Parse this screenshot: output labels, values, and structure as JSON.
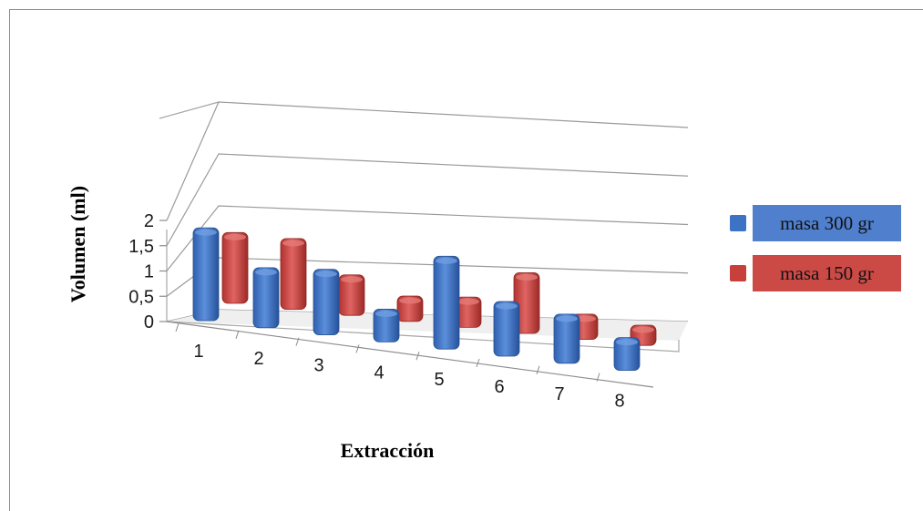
{
  "chart_data": {
    "type": "bar",
    "title": "",
    "xlabel": "Extracción",
    "ylabel": "Volumen  (ml)",
    "categories": [
      "1",
      "2",
      "3",
      "4",
      "5",
      "6",
      "7",
      "8"
    ],
    "ylim": [
      0,
      2
    ],
    "yticks": [
      "0",
      "0,5",
      "1",
      "1,5",
      "2"
    ],
    "grid": true,
    "legend_placement": "right",
    "series": [
      {
        "name": "masa 300 gr",
        "color": "#3d73c4",
        "values": [
          1.7,
          1.1,
          1.2,
          0.6,
          1.7,
          1.0,
          0.9,
          0.6
        ]
      },
      {
        "name": "masa 150 gr",
        "color": "#c8403c",
        "values": [
          1.4,
          1.4,
          0.8,
          0.5,
          0.6,
          1.2,
          0.5,
          0.4
        ]
      }
    ]
  }
}
